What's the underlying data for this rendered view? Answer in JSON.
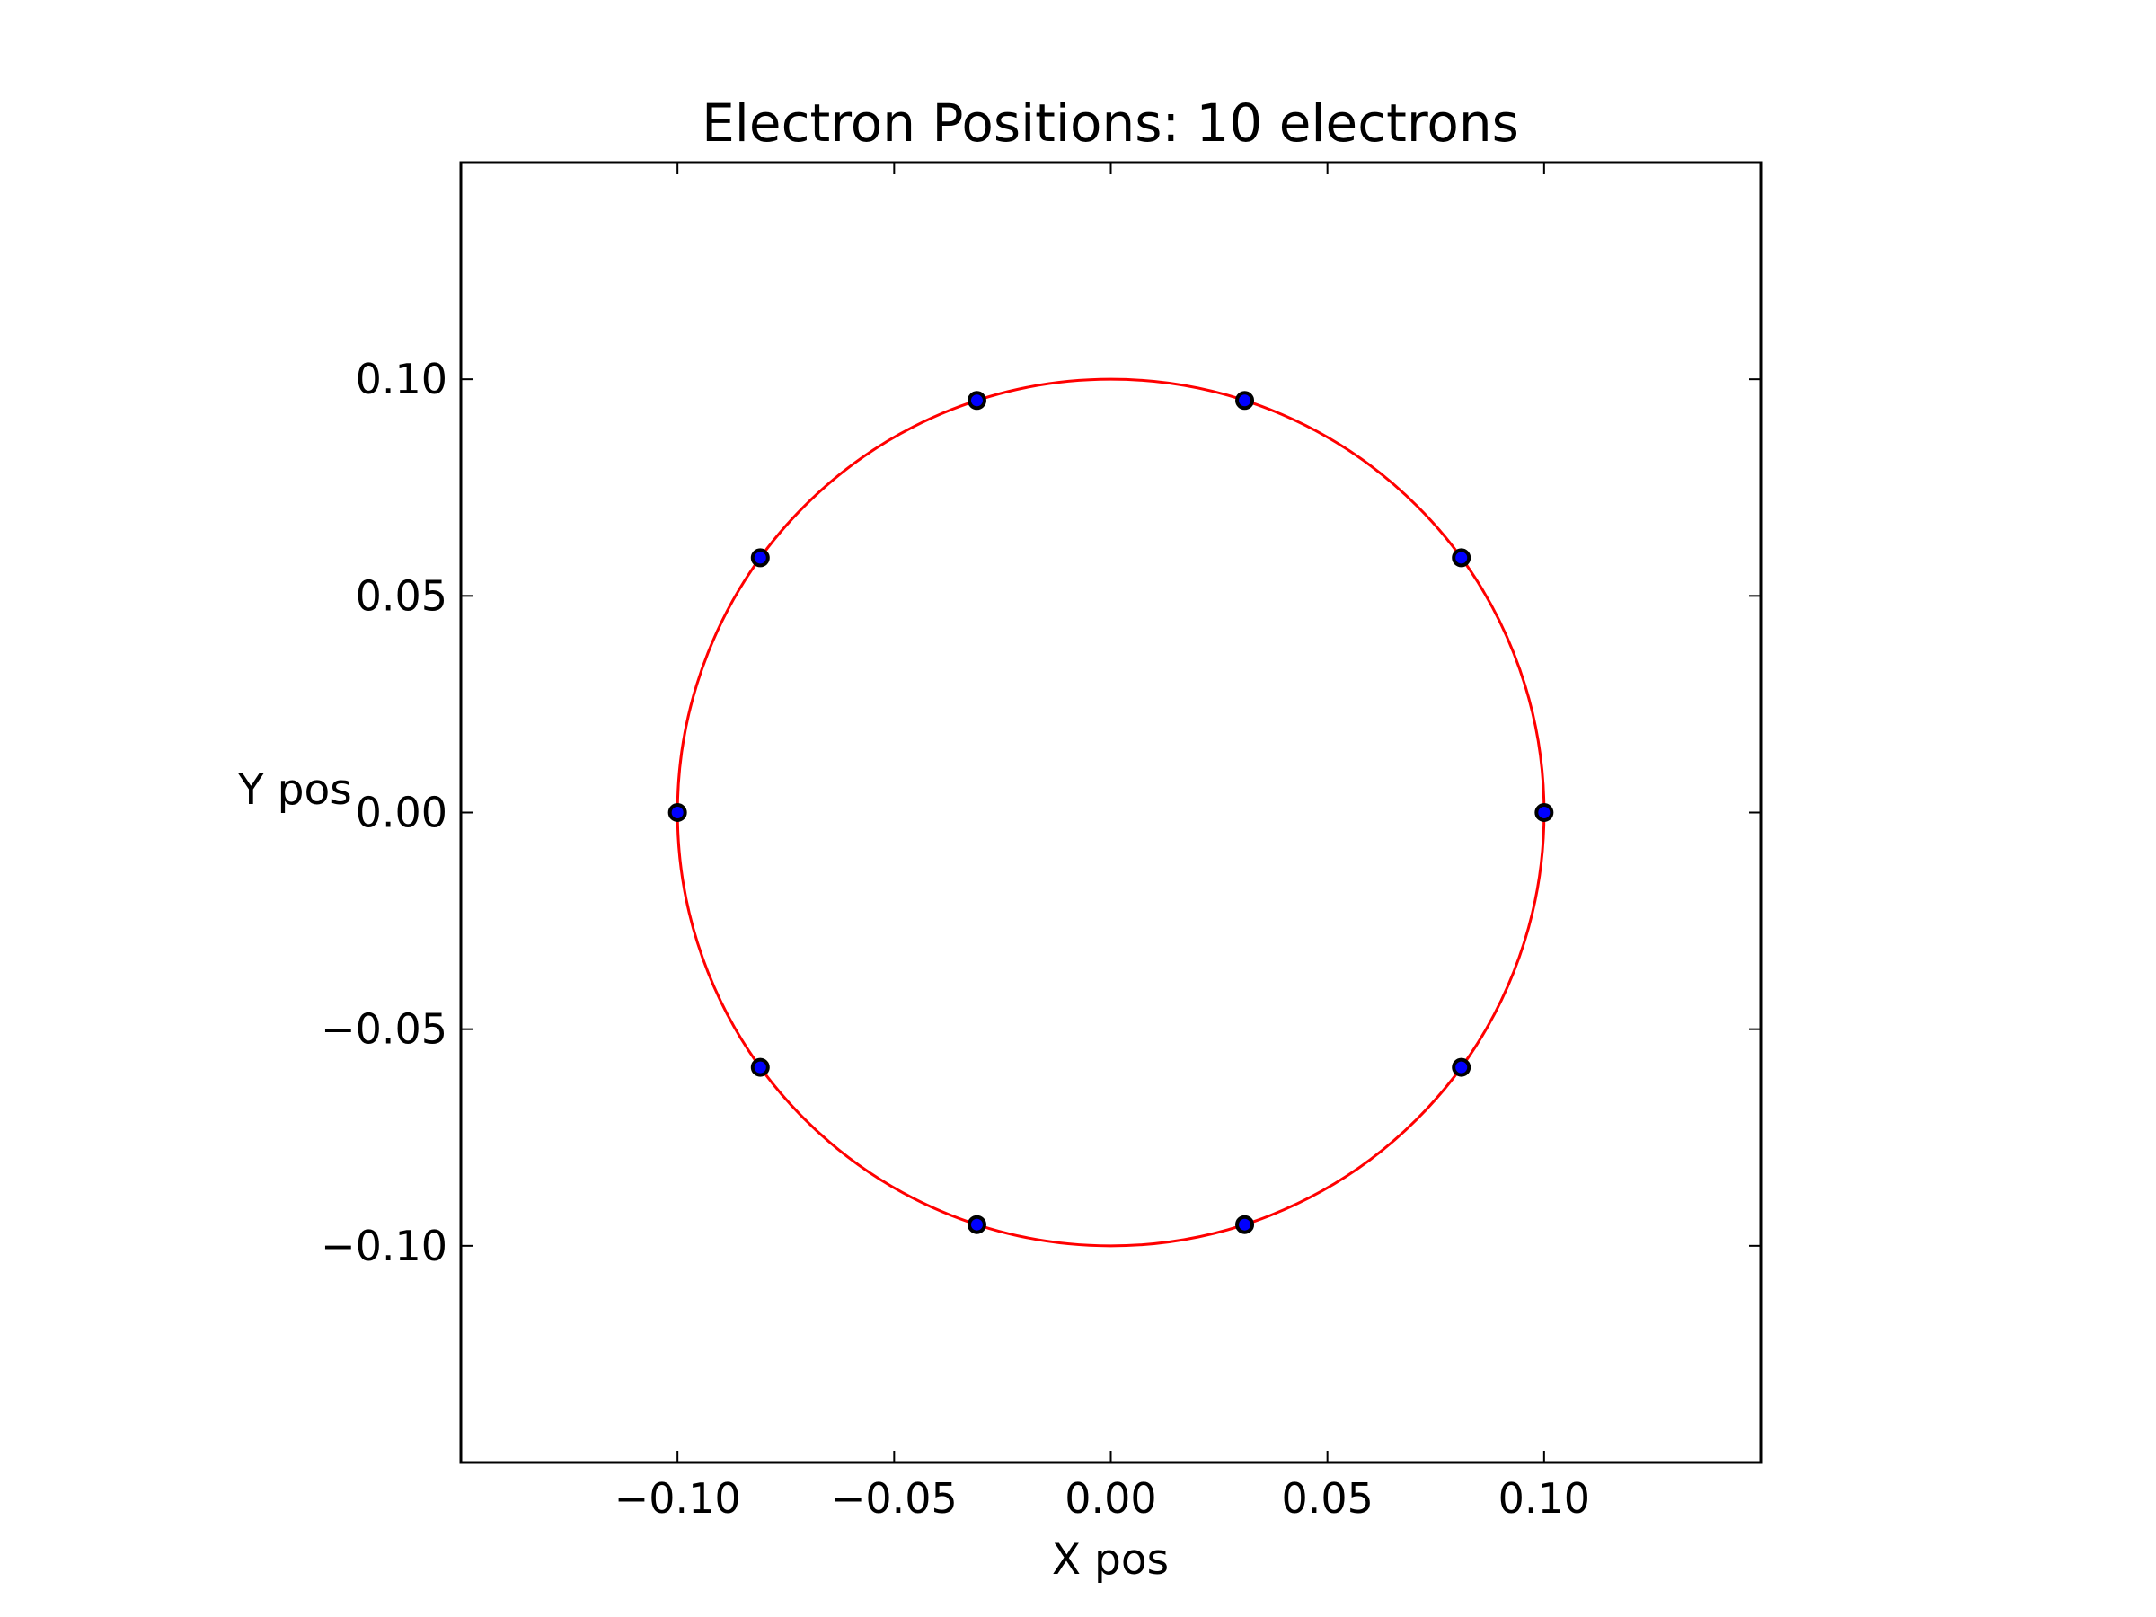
{
  "chart_data": {
    "type": "scatter",
    "title": "Electron Positions: 10 electrons",
    "xlabel": "X pos",
    "ylabel": "Y pos",
    "xlim": [
      -0.15,
      0.15
    ],
    "ylim": [
      -0.15,
      0.15
    ],
    "x_ticks": [
      -0.1,
      -0.05,
      0.0,
      0.05,
      0.1
    ],
    "y_ticks": [
      -0.1,
      -0.05,
      0.0,
      0.05,
      0.1
    ],
    "x_tick_labels": [
      "−0.10",
      "−0.05",
      "0.00",
      "0.05",
      "0.10"
    ],
    "y_tick_labels": [
      "−0.10",
      "−0.05",
      "0.00",
      "0.05",
      "0.10"
    ],
    "grid": false,
    "series": [
      {
        "type": "scatter",
        "color": "#0000ff",
        "edge_color": "#000000",
        "points": [
          {
            "x": 0.1,
            "y": 0.0
          },
          {
            "x": 0.0809,
            "y": 0.0588
          },
          {
            "x": 0.0309,
            "y": 0.0951
          },
          {
            "x": -0.0309,
            "y": 0.0951
          },
          {
            "x": -0.0809,
            "y": 0.0588
          },
          {
            "x": -0.1,
            "y": 0.0
          },
          {
            "x": -0.0809,
            "y": -0.0588
          },
          {
            "x": -0.0309,
            "y": -0.0951
          },
          {
            "x": 0.0309,
            "y": -0.0951
          },
          {
            "x": 0.0809,
            "y": -0.0588
          }
        ]
      },
      {
        "type": "circle",
        "color": "#ff0000",
        "center": [
          0.0,
          0.0
        ],
        "radius": 0.1
      }
    ]
  }
}
